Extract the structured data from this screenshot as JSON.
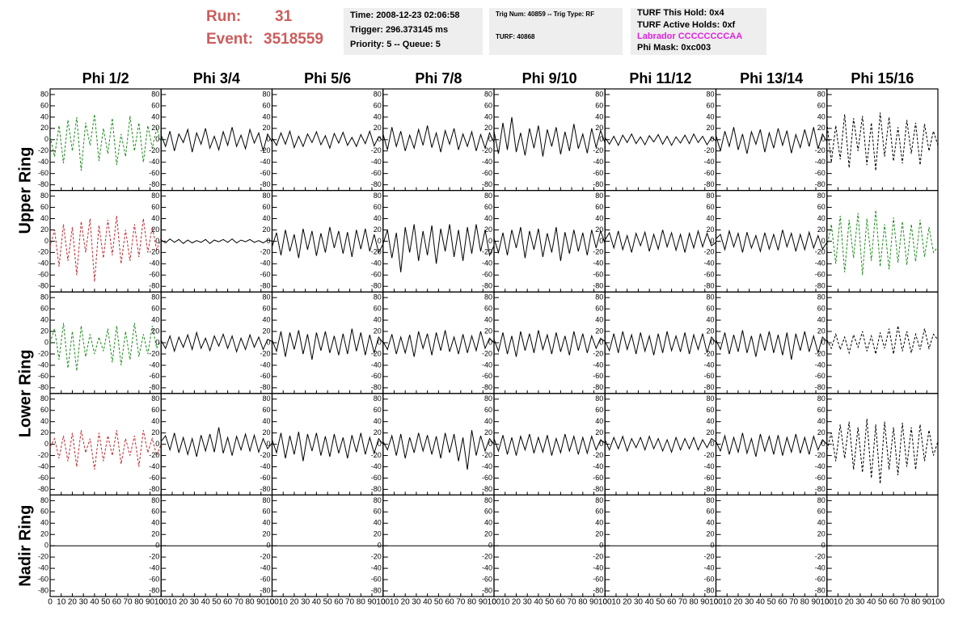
{
  "header": {
    "run_label": "Run:",
    "run": "31",
    "event_label": "Event:",
    "event": "3518559",
    "info1": [
      "Time: 2008-12-23 02:06:58",
      "Trigger: 296.373145 ms",
      "Priority: 5 -- Queue: 5"
    ],
    "info2": [
      "Trig Num: 40859 -- Trig Type: RF",
      "TURF: 40868"
    ],
    "info3": [
      "TURF This Hold: 0x4",
      "TURF Active Holds: 0xf",
      "Labrador CCCCCCCCAA",
      "Phi Mask: 0xc003"
    ]
  },
  "columns": [
    "Phi 1/2",
    "Phi 3/4",
    "Phi 5/6",
    "Phi 7/8",
    "Phi 9/10",
    "Phi 11/12",
    "Phi 13/14",
    "Phi 15/16"
  ],
  "ring_labels": [
    "Upper Ring",
    "Lower Ring",
    "Nadir Ring"
  ],
  "xlim": [
    0,
    100
  ],
  "xticks": [
    0,
    10,
    20,
    30,
    40,
    50,
    60,
    70,
    80,
    90,
    100
  ],
  "ylim": [
    -90,
    90
  ],
  "yticks": [
    -80,
    -60,
    -40,
    -20,
    0,
    20,
    40,
    60,
    80
  ],
  "x": [
    0,
    4,
    8,
    12,
    16,
    20,
    24,
    28,
    32,
    36,
    40,
    44,
    48,
    52,
    56,
    60,
    64,
    68,
    72,
    76,
    80,
    84,
    88,
    92,
    96,
    100
  ],
  "panels": [
    {
      "color": "#1e8c1e",
      "style": "dashed",
      "values": [
        5,
        -30,
        25,
        -42,
        35,
        -20,
        40,
        -55,
        30,
        -10,
        45,
        -38,
        20,
        -25,
        38,
        -45,
        10,
        -30,
        42,
        -20,
        30,
        -40,
        25,
        -15,
        20,
        -5
      ]
    },
    {
      "color": "#000000",
      "style": "solid",
      "values": [
        8,
        -12,
        15,
        -20,
        10,
        -5,
        18,
        -22,
        12,
        -8,
        20,
        -15,
        6,
        -18,
        14,
        -10,
        22,
        -12,
        8,
        -16,
        18,
        -6,
        12,
        -20,
        10,
        -4
      ]
    },
    {
      "color": "#000000",
      "style": "solid",
      "values": [
        3,
        -10,
        12,
        -8,
        15,
        -14,
        6,
        -12,
        10,
        -5,
        14,
        -9,
        7,
        -15,
        11,
        -6,
        13,
        -10,
        4,
        -12,
        9,
        -7,
        15,
        -11,
        5,
        -2
      ]
    },
    {
      "color": "#000000",
      "style": "solid",
      "values": [
        10,
        -18,
        22,
        -12,
        15,
        -20,
        8,
        -15,
        18,
        -10,
        25,
        -14,
        12,
        -22,
        16,
        -8,
        20,
        -18,
        10,
        -12,
        14,
        -20,
        9,
        -15,
        12,
        -5
      ]
    },
    {
      "color": "#000000",
      "style": "solid",
      "values": [
        15,
        -25,
        30,
        -18,
        40,
        -22,
        12,
        -28,
        20,
        -15,
        25,
        -30,
        18,
        -12,
        22,
        -26,
        14,
        -20,
        28,
        -16,
        10,
        -24,
        20,
        -14,
        16,
        -6
      ]
    },
    {
      "color": "#000000",
      "style": "solid",
      "values": [
        4,
        -8,
        6,
        -10,
        8,
        -5,
        10,
        -7,
        5,
        -9,
        7,
        -4,
        9,
        -8,
        6,
        -10,
        5,
        -6,
        8,
        -7,
        10,
        -5,
        6,
        -9,
        4,
        -2
      ]
    },
    {
      "color": "#000000",
      "style": "solid",
      "values": [
        8,
        -20,
        15,
        -12,
        22,
        -18,
        10,
        -25,
        14,
        -8,
        18,
        -22,
        12,
        -15,
        20,
        -10,
        16,
        -24,
        9,
        -14,
        18,
        -12,
        22,
        -16,
        10,
        -4
      ]
    },
    {
      "color": "#000000",
      "style": "dashed",
      "values": [
        30,
        -40,
        25,
        -35,
        45,
        -50,
        38,
        -20,
        42,
        -45,
        30,
        -55,
        48,
        -30,
        40,
        -38,
        22,
        -42,
        35,
        -25,
        30,
        -45,
        28,
        -20,
        15,
        -10
      ]
    },
    {
      "color": "#c0282c",
      "style": "dashed",
      "values": [
        -10,
        20,
        -45,
        30,
        -35,
        25,
        -60,
        35,
        -20,
        40,
        -72,
        28,
        -30,
        38,
        -25,
        45,
        -40,
        20,
        -35,
        30,
        -28,
        40,
        -20,
        25,
        -15,
        5
      ]
    },
    {
      "color": "#000000",
      "style": "solid",
      "values": [
        2,
        -3,
        4,
        -2,
        3,
        -4,
        2,
        -3,
        1,
        -2,
        3,
        -4,
        2,
        -1,
        3,
        -2,
        4,
        -3,
        2,
        -1,
        3,
        -2,
        1,
        -3,
        2,
        0
      ]
    },
    {
      "color": "#000000",
      "style": "solid",
      "values": [
        -10,
        15,
        -25,
        20,
        -18,
        12,
        -30,
        22,
        -15,
        18,
        -26,
        14,
        -20,
        25,
        -12,
        18,
        -22,
        16,
        -28,
        20,
        -14,
        22,
        -18,
        12,
        -20,
        -5
      ]
    },
    {
      "color": "#000000",
      "style": "solid",
      "values": [
        -5,
        20,
        -30,
        15,
        -55,
        25,
        -20,
        30,
        -35,
        18,
        -25,
        28,
        -40,
        22,
        -18,
        30,
        -28,
        20,
        -35,
        25,
        -22,
        30,
        -18,
        20,
        -25,
        -8
      ]
    },
    {
      "color": "#000000",
      "style": "solid",
      "values": [
        5,
        -20,
        15,
        -25,
        20,
        -12,
        25,
        -30,
        18,
        -15,
        22,
        -28,
        14,
        -20,
        25,
        -35,
        16,
        -22,
        20,
        -18,
        15,
        -25,
        20,
        -12,
        18,
        -4
      ]
    },
    {
      "color": "#000000",
      "style": "solid",
      "values": [
        2,
        15,
        -12,
        18,
        -15,
        10,
        -20,
        14,
        -8,
        16,
        -18,
        12,
        -14,
        20,
        -10,
        15,
        -16,
        12,
        -20,
        14,
        -12,
        18,
        -10,
        14,
        -8,
        -2
      ]
    },
    {
      "color": "#000000",
      "style": "solid",
      "values": [
        4,
        12,
        -15,
        18,
        -10,
        14,
        -20,
        16,
        -12,
        10,
        -18,
        15,
        -14,
        12,
        -16,
        20,
        -10,
        14,
        -18,
        12,
        -15,
        16,
        -12,
        10,
        -14,
        -2
      ]
    },
    {
      "color": "#1e8c1e",
      "style": "dashed",
      "values": [
        -10,
        30,
        -40,
        45,
        -55,
        38,
        -30,
        50,
        -60,
        40,
        -35,
        55,
        -45,
        30,
        -50,
        42,
        -38,
        35,
        -42,
        30,
        -36,
        38,
        -28,
        25,
        -20,
        -10
      ]
    },
    {
      "color": "#1e8c1e",
      "style": "dashed",
      "values": [
        0,
        25,
        -30,
        35,
        -45,
        20,
        -50,
        30,
        -25,
        15,
        -20,
        10,
        -15,
        25,
        -35,
        30,
        -40,
        20,
        -30,
        35,
        -25,
        15,
        -20,
        30,
        -10,
        5
      ]
    },
    {
      "color": "#000000",
      "style": "solid",
      "values": [
        4,
        -10,
        12,
        -15,
        10,
        -8,
        14,
        -12,
        18,
        -10,
        8,
        -14,
        12,
        -6,
        15,
        -10,
        12,
        -16,
        8,
        -12,
        14,
        -8,
        10,
        -12,
        6,
        2
      ]
    },
    {
      "color": "#000000",
      "style": "solid",
      "values": [
        5,
        -15,
        20,
        -25,
        18,
        -12,
        22,
        -20,
        15,
        -30,
        18,
        -14,
        20,
        -18,
        12,
        -22,
        16,
        -20,
        25,
        -15,
        18,
        -22,
        14,
        -18,
        10,
        0
      ]
    },
    {
      "color": "#000000",
      "style": "solid",
      "values": [
        2,
        -12,
        15,
        -20,
        10,
        -18,
        14,
        -25,
        20,
        -10,
        16,
        -22,
        18,
        -14,
        22,
        -16,
        10,
        -20,
        15,
        -18,
        12,
        -14,
        20,
        -10,
        8,
        0
      ]
    },
    {
      "color": "#000000",
      "style": "solid",
      "values": [
        6,
        -15,
        18,
        -20,
        12,
        -25,
        20,
        -14,
        16,
        -18,
        22,
        -12,
        14,
        -20,
        18,
        -16,
        12,
        -22,
        20,
        -14,
        16,
        -18,
        12,
        -10,
        8,
        2
      ]
    },
    {
      "color": "#000000",
      "style": "solid",
      "values": [
        3,
        -14,
        16,
        -18,
        20,
        -12,
        14,
        -20,
        18,
        -15,
        12,
        -22,
        16,
        -18,
        20,
        -14,
        12,
        -16,
        18,
        -20,
        14,
        -12,
        16,
        -18,
        10,
        0
      ]
    },
    {
      "color": "#000000",
      "style": "solid",
      "values": [
        5,
        -12,
        18,
        -20,
        14,
        -16,
        22,
        -18,
        12,
        -25,
        16,
        -14,
        20,
        -18,
        14,
        -22,
        18,
        -30,
        16,
        -14,
        20,
        -16,
        12,
        -18,
        10,
        2
      ]
    },
    {
      "color": "#000000",
      "style": "dashed",
      "values": [
        5,
        -10,
        15,
        -12,
        10,
        -18,
        14,
        -8,
        20,
        -15,
        12,
        -20,
        18,
        -10,
        25,
        -20,
        30,
        -15,
        20,
        -18,
        15,
        -12,
        25,
        -10,
        15,
        5
      ]
    },
    {
      "color": "#c0282c",
      "style": "dashed",
      "values": [
        -5,
        10,
        -25,
        15,
        -30,
        20,
        -40,
        25,
        -15,
        10,
        -45,
        20,
        -30,
        15,
        -20,
        25,
        -35,
        10,
        -20,
        15,
        -40,
        25,
        -15,
        10,
        -20,
        0
      ]
    },
    {
      "color": "#000000",
      "style": "solid",
      "values": [
        5,
        15,
        -10,
        20,
        -15,
        12,
        -18,
        10,
        -22,
        16,
        -12,
        18,
        -14,
        30,
        -16,
        12,
        -20,
        14,
        -10,
        18,
        -12,
        16,
        -14,
        10,
        -8,
        2
      ]
    },
    {
      "color": "#000000",
      "style": "solid",
      "values": [
        8,
        -15,
        20,
        -25,
        15,
        -18,
        22,
        -30,
        18,
        -12,
        20,
        -20,
        14,
        -22,
        18,
        -16,
        12,
        -25,
        16,
        -14,
        20,
        -18,
        12,
        -16,
        10,
        0
      ]
    },
    {
      "color": "#000000",
      "style": "solid",
      "values": [
        5,
        -10,
        15,
        -20,
        18,
        -25,
        12,
        -15,
        20,
        -12,
        16,
        -18,
        14,
        -25,
        20,
        -15,
        18,
        -30,
        12,
        -45,
        25,
        -20,
        15,
        -12,
        10,
        0
      ]
    },
    {
      "color": "#000000",
      "style": "solid",
      "values": [
        10,
        -12,
        16,
        -18,
        12,
        -20,
        14,
        -10,
        18,
        -16,
        12,
        -14,
        16,
        -20,
        10,
        -15,
        18,
        -12,
        14,
        -18,
        12,
        -16,
        14,
        -10,
        8,
        2
      ]
    },
    {
      "color": "#000000",
      "style": "solid",
      "values": [
        8,
        -10,
        12,
        -8,
        14,
        -12,
        10,
        -6,
        12,
        -10,
        14,
        -8,
        10,
        -12,
        8,
        -14,
        12,
        -10,
        10,
        -8,
        12,
        -10,
        8,
        -6,
        10,
        4
      ]
    },
    {
      "color": "#000000",
      "style": "solid",
      "values": [
        5,
        -12,
        15,
        -18,
        12,
        -14,
        20,
        -16,
        10,
        -22,
        18,
        -12,
        14,
        -18,
        16,
        -20,
        12,
        -14,
        18,
        -16,
        12,
        -18,
        14,
        -10,
        8,
        0
      ]
    },
    {
      "color": "#000000",
      "style": "dashed",
      "values": [
        -10,
        20,
        -30,
        35,
        -25,
        40,
        -45,
        30,
        -50,
        45,
        -60,
        35,
        -70,
        40,
        -45,
        30,
        -55,
        38,
        -40,
        30,
        -45,
        35,
        -30,
        25,
        -20,
        5
      ]
    },
    {
      "color": "#000000",
      "style": "solid",
      "values": [
        0,
        0,
        0,
        0,
        0,
        0,
        0,
        0,
        0,
        0,
        0,
        0,
        0,
        0,
        0,
        0,
        0,
        0,
        0,
        0,
        0,
        0,
        0,
        0,
        0,
        0
      ]
    },
    {
      "color": "#000000",
      "style": "solid",
      "values": [
        0,
        0,
        0,
        0,
        0,
        0,
        0,
        0,
        0,
        0,
        0,
        0,
        0,
        0,
        0,
        0,
        0,
        0,
        0,
        0,
        0,
        0,
        0,
        0,
        0,
        0
      ]
    },
    {
      "color": "#000000",
      "style": "solid",
      "values": [
        0,
        0,
        0,
        0,
        0,
        0,
        0,
        0,
        0,
        0,
        0,
        0,
        0,
        0,
        0,
        0,
        0,
        0,
        0,
        0,
        0,
        0,
        0,
        0,
        0,
        0
      ]
    },
    {
      "color": "#000000",
      "style": "solid",
      "values": [
        0,
        0,
        0,
        0,
        0,
        0,
        0,
        0,
        0,
        0,
        0,
        0,
        0,
        0,
        0,
        0,
        0,
        0,
        0,
        0,
        0,
        0,
        0,
        0,
        0,
        0
      ]
    },
    {
      "color": "#000000",
      "style": "solid",
      "values": [
        0,
        0,
        0,
        0,
        0,
        0,
        0,
        0,
        0,
        0,
        0,
        0,
        0,
        0,
        0,
        0,
        0,
        0,
        0,
        0,
        0,
        0,
        0,
        0,
        0,
        0
      ]
    },
    {
      "color": "#000000",
      "style": "solid",
      "values": [
        0,
        0,
        0,
        0,
        0,
        0,
        0,
        0,
        0,
        0,
        0,
        0,
        0,
        0,
        0,
        0,
        0,
        0,
        0,
        0,
        0,
        0,
        0,
        0,
        0,
        0
      ]
    },
    {
      "color": "#000000",
      "style": "solid",
      "values": [
        0,
        0,
        0,
        0,
        0,
        0,
        0,
        0,
        0,
        0,
        0,
        0,
        0,
        0,
        0,
        0,
        0,
        0,
        0,
        0,
        0,
        0,
        0,
        0,
        0,
        0
      ]
    },
    {
      "color": "#000000",
      "style": "solid",
      "values": [
        0,
        0,
        0,
        0,
        0,
        0,
        0,
        0,
        0,
        0,
        0,
        0,
        0,
        0,
        0,
        0,
        0,
        0,
        0,
        0,
        0,
        0,
        0,
        0,
        0,
        0
      ]
    }
  ]
}
